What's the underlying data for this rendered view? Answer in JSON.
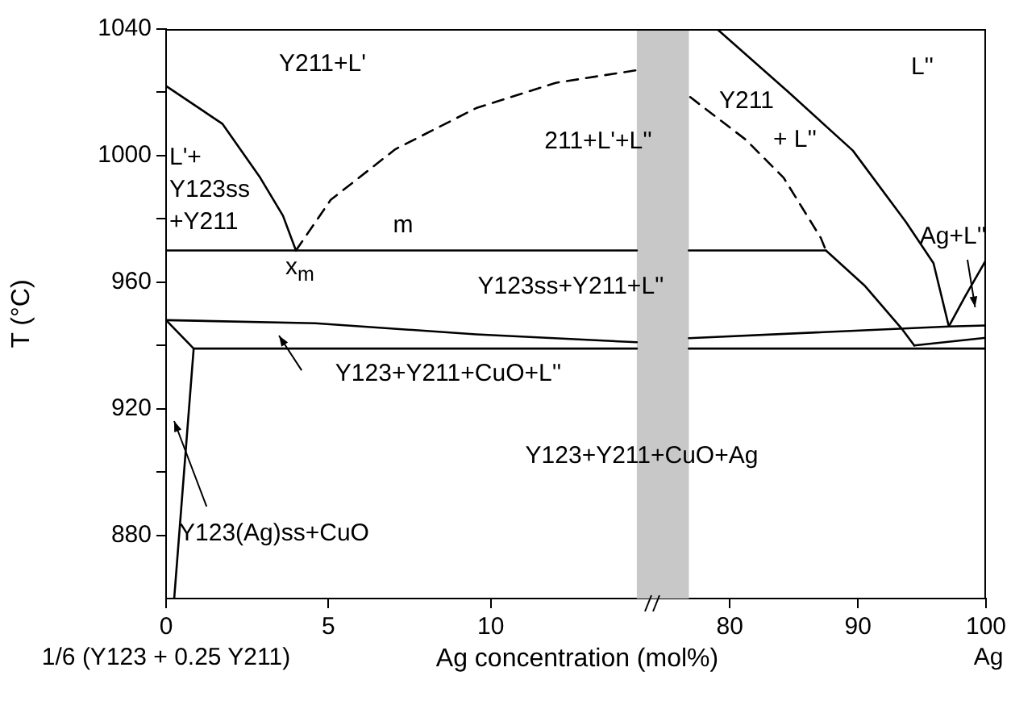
{
  "chart_data": [
    {
      "type": "line",
      "ylabel": "T (°C)",
      "xlabel": "Ag concentration  (mol%)",
      "marker": "none",
      "legend": false,
      "xlim": [
        0,
        15
      ],
      "xticks": [
        0,
        5,
        10
      ],
      "ylim": [
        860,
        1040
      ],
      "yticks": [
        {
          "value": 880,
          "label": "880"
        },
        {
          "value": 900,
          "label": null
        },
        {
          "value": 920,
          "label": "920"
        },
        {
          "value": 940,
          "label": null
        },
        {
          "value": 960,
          "label": "960"
        },
        {
          "value": 980,
          "label": null
        },
        {
          "value": 1000,
          "label": "1000"
        },
        {
          "value": 1020,
          "label": null
        },
        {
          "value": 1040,
          "label": "1040"
        }
      ],
      "bands": [
        {
          "axis": "x",
          "from": 14.5,
          "to": 15,
          "color": "#c8c8c8"
        }
      ],
      "series": [
        {
          "color": "#000000",
          "x": [
            0,
            1.74,
            2.9,
            3.6,
            4.0
          ],
          "values": [
            1022,
            1010,
            993,
            981,
            970
          ]
        },
        {
          "color": "#000000",
          "line_style": "dashed",
          "x": [
            4.0,
            5.07,
            7.06,
            9.55,
            12.0,
            14.5
          ],
          "values": [
            970,
            986,
            1002,
            1015,
            1023,
            1027
          ]
        },
        {
          "color": "#000000",
          "x": [
            0,
            14.5
          ],
          "values": [
            970,
            970
          ]
        },
        {
          "color": "#000000",
          "x": [
            0,
            4.6,
            9.55,
            14.5
          ],
          "values": [
            948,
            947,
            943.5,
            941
          ]
        },
        {
          "color": "#000000",
          "x": [
            0.85,
            14.5
          ],
          "values": [
            939,
            939
          ]
        },
        {
          "color": "#000000",
          "x": [
            0,
            0.85
          ],
          "values": [
            948,
            939
          ]
        },
        {
          "color": "#000000",
          "x": [
            0.25,
            0.85
          ],
          "values": [
            860,
            939
          ]
        }
      ],
      "annotations": [
        "Y211+L'",
        "L'+\nY123ss\n+Y211",
        "m",
        "x$_{m}$",
        "211+L'+L''",
        "Y123ss+Y211+L''",
        "Y123+Y211+CuO+L''",
        "Y123+Y211+CuO+Ag",
        "Y123(Ag)ss+CuO",
        "1/6 (Y123 + 0.25 Y211)"
      ]
    },
    {
      "type": "line",
      "marker": "none",
      "legend": false,
      "tick_labels": "x",
      "xlim": [
        74,
        100
      ],
      "xticks": [
        80,
        90,
        100
      ],
      "ylim": [
        860,
        1040
      ],
      "bands": [
        {
          "axis": "x",
          "from": 74,
          "to": 76.8,
          "color": "#c8c8c8"
        }
      ],
      "series": [
        {
          "color": "#000000",
          "line_style": "dashed",
          "x": [
            76.9,
            81.25,
            84.2,
            87.1,
            87.5
          ],
          "values": [
            1018.5,
            1005,
            993,
            974,
            970
          ]
        },
        {
          "color": "#000000",
          "x": [
            76.8,
            87.5
          ],
          "values": [
            970,
            970
          ]
        },
        {
          "color": "#000000",
          "x": [
            87.5,
            90.5,
            93.4,
            94.4
          ],
          "values": [
            970,
            959,
            945.4,
            940
          ]
        },
        {
          "color": "#000000",
          "x": [
            76.8,
            97.1,
            100
          ],
          "values": [
            942.3,
            946,
            946.3
          ]
        },
        {
          "color": "#000000",
          "x": [
            94.4,
            100
          ],
          "values": [
            940,
            942.4
          ]
        },
        {
          "color": "#000000",
          "x": [
            76.8,
            100
          ],
          "values": [
            939,
            939
          ]
        },
        {
          "color": "#000000",
          "x": [
            79,
            84.6,
            89.6,
            93.75,
            95.9,
            97.1
          ],
          "values": [
            1040,
            1020,
            1001.6,
            979,
            966,
            946
          ]
        },
        {
          "color": "#000000",
          "x": [
            97.1,
            98.4,
            100
          ],
          "values": [
            946,
            955.7,
            967
          ]
        }
      ],
      "annotations": [
        "Y211",
        "+ L''",
        "L''",
        "Ag+L''",
        "Ag"
      ]
    }
  ]
}
